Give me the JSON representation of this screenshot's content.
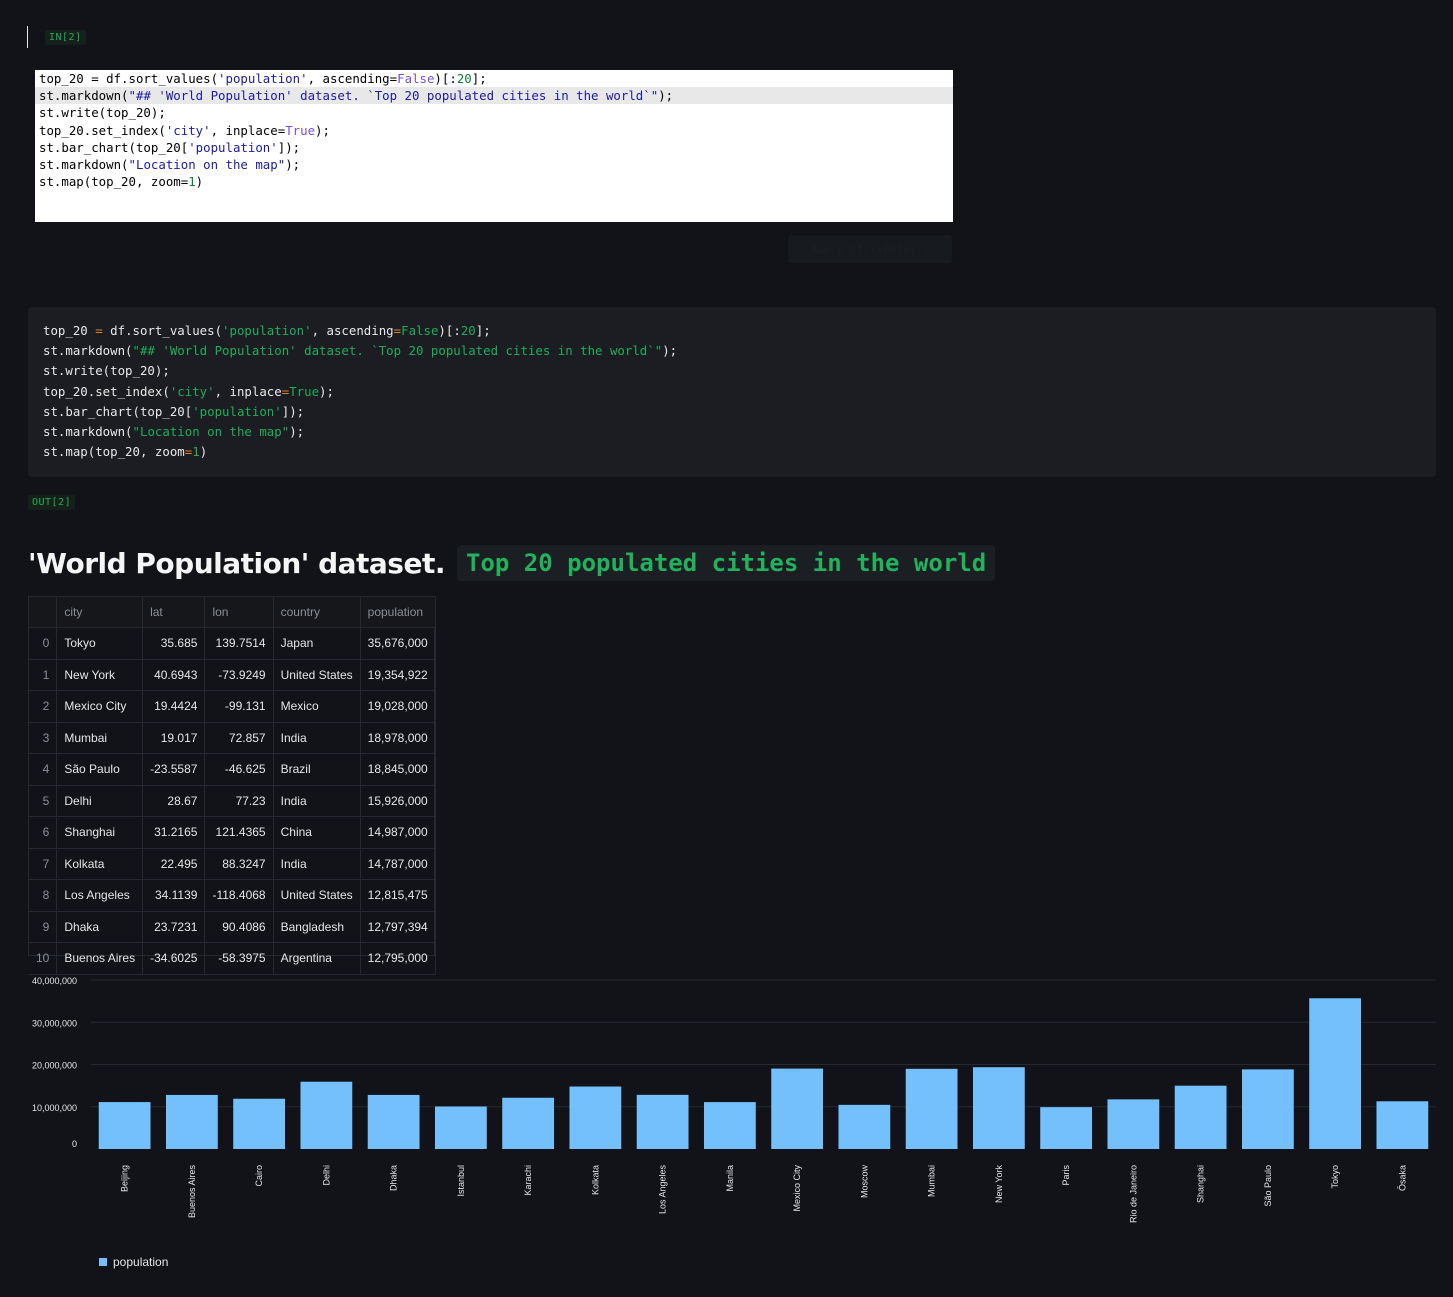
{
  "cell": {
    "in_label": "IN[2]",
    "out_label": "OUT[2]",
    "run_button_label": "Run ( Ctrl+Enter )",
    "code_lines": [
      "top_20 = df.sort_values('population', ascending=False)[:20];",
      "st.markdown(\"## 'World Population' dataset. `Top 20 populated cities in the world`\");",
      "st.write(top_20);",
      "top_20.set_index('city', inplace=True);",
      "st.bar_chart(top_20['population']);",
      "st.markdown(\"Location on the map\");",
      "st.map(top_20, zoom=1)"
    ]
  },
  "output": {
    "heading_text": "'World Population' dataset.",
    "heading_code": "Top 20 populated cities in the world"
  },
  "table": {
    "columns": [
      "",
      "city",
      "lat",
      "lon",
      "country",
      "population"
    ],
    "rows": [
      [
        "0",
        "Tokyo",
        "35.685",
        "139.7514",
        "Japan",
        "35,676,000"
      ],
      [
        "1",
        "New York",
        "40.6943",
        "-73.9249",
        "United States",
        "19,354,922"
      ],
      [
        "2",
        "Mexico City",
        "19.4424",
        "-99.131",
        "Mexico",
        "19,028,000"
      ],
      [
        "3",
        "Mumbai",
        "19.017",
        "72.857",
        "India",
        "18,978,000"
      ],
      [
        "4",
        "São Paulo",
        "-23.5587",
        "-46.625",
        "Brazil",
        "18,845,000"
      ],
      [
        "5",
        "Delhi",
        "28.67",
        "77.23",
        "India",
        "15,926,000"
      ],
      [
        "6",
        "Shanghai",
        "31.2165",
        "121.4365",
        "China",
        "14,987,000"
      ],
      [
        "7",
        "Kolkata",
        "22.495",
        "88.3247",
        "India",
        "14,787,000"
      ],
      [
        "8",
        "Los Angeles",
        "34.1139",
        "-118.4068",
        "United States",
        "12,815,475"
      ],
      [
        "9",
        "Dhaka",
        "23.7231",
        "90.4086",
        "Bangladesh",
        "12,797,394"
      ],
      [
        "10",
        "Buenos Aires",
        "-34.6025",
        "-58.3975",
        "Argentina",
        "12,795,000"
      ]
    ]
  },
  "chart_data": {
    "type": "bar",
    "categories": [
      "Beijing",
      "Buenos Aires",
      "Cairo",
      "Delhi",
      "Dhaka",
      "Istanbul",
      "Karachi",
      "Kolkata",
      "Los Angeles",
      "Manila",
      "Mexico City",
      "Moscow",
      "Mumbai",
      "New York",
      "Paris",
      "Rio de Janeiro",
      "Shanghai",
      "São Paulo",
      "Tokyo",
      "Ōsaka"
    ],
    "series": [
      {
        "name": "population",
        "values": [
          11106000,
          12795000,
          11893000,
          15926000,
          12797394,
          10061000,
          12130000,
          14787000,
          12815475,
          11100000,
          19028000,
          10452000,
          18978000,
          19354922,
          9904000,
          11748000,
          14987000,
          18845000,
          35676000,
          11294000
        ]
      }
    ],
    "yticks": [
      "0",
      "10,000,000",
      "20,000,000",
      "30,000,000",
      "40,000,000"
    ],
    "ylim": [
      0,
      40000000
    ],
    "grid": true,
    "legend_position": "bottom-left",
    "bar_color": "#74c0fc"
  }
}
